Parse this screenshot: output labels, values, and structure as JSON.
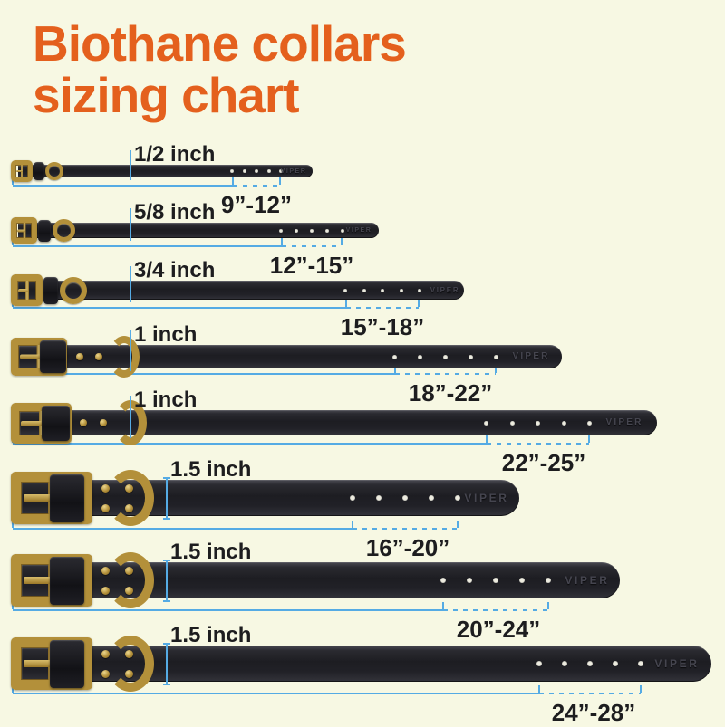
{
  "title": {
    "line1": "Biothane collars",
    "line2": "sizing chart"
  },
  "colors": {
    "background": "#f7f8e3",
    "title_orange": "#e4601d",
    "dimension_blue": "#55abe4",
    "label_black": "#1d1d1f",
    "strap_black": "#232329",
    "brass_gold": "#b3903a"
  },
  "collars": [
    {
      "width_label": "1/2 inch",
      "size_range": "9”-12”",
      "brand": "VIPER"
    },
    {
      "width_label": "5/8 inch",
      "size_range": "12”-15”",
      "brand": "VIPER"
    },
    {
      "width_label": "3/4 inch",
      "size_range": "15”-18”",
      "brand": "VIPER"
    },
    {
      "width_label": "1 inch",
      "size_range": "18”-22”",
      "brand": "VIPER"
    },
    {
      "width_label": "1 inch",
      "size_range": "22”-25”",
      "brand": "VIPER"
    },
    {
      "width_label": "1.5 inch",
      "size_range": "16”-20”",
      "brand": "VIPER"
    },
    {
      "width_label": "1.5 inch",
      "size_range": "20”-24”",
      "brand": "VIPER"
    },
    {
      "width_label": "1.5 inch",
      "size_range": "24”-28”",
      "brand": "VIPER"
    }
  ],
  "chart_data": {
    "type": "table",
    "title": "Biothane collars sizing chart",
    "columns": [
      "collar_width",
      "fits_neck_size"
    ],
    "rows": [
      [
        "1/2 inch",
        "9”-12”"
      ],
      [
        "5/8 inch",
        "12”-15”"
      ],
      [
        "3/4 inch",
        "15”-18”"
      ],
      [
        "1 inch",
        "18”-22”"
      ],
      [
        "1 inch",
        "22”-25”"
      ],
      [
        "1.5 inch",
        "16”-20”"
      ],
      [
        "1.5 inch",
        "20”-24”"
      ],
      [
        "1.5 inch",
        "24”-28”"
      ]
    ],
    "width_inches": [
      0.5,
      0.625,
      0.75,
      1,
      1,
      1.5,
      1.5,
      1.5
    ],
    "size_range_inches": [
      [
        9,
        12
      ],
      [
        12,
        15
      ],
      [
        15,
        18
      ],
      [
        18,
        22
      ],
      [
        22,
        25
      ],
      [
        16,
        20
      ],
      [
        20,
        24
      ],
      [
        24,
        28
      ]
    ],
    "holes_per_collar": 5
  }
}
